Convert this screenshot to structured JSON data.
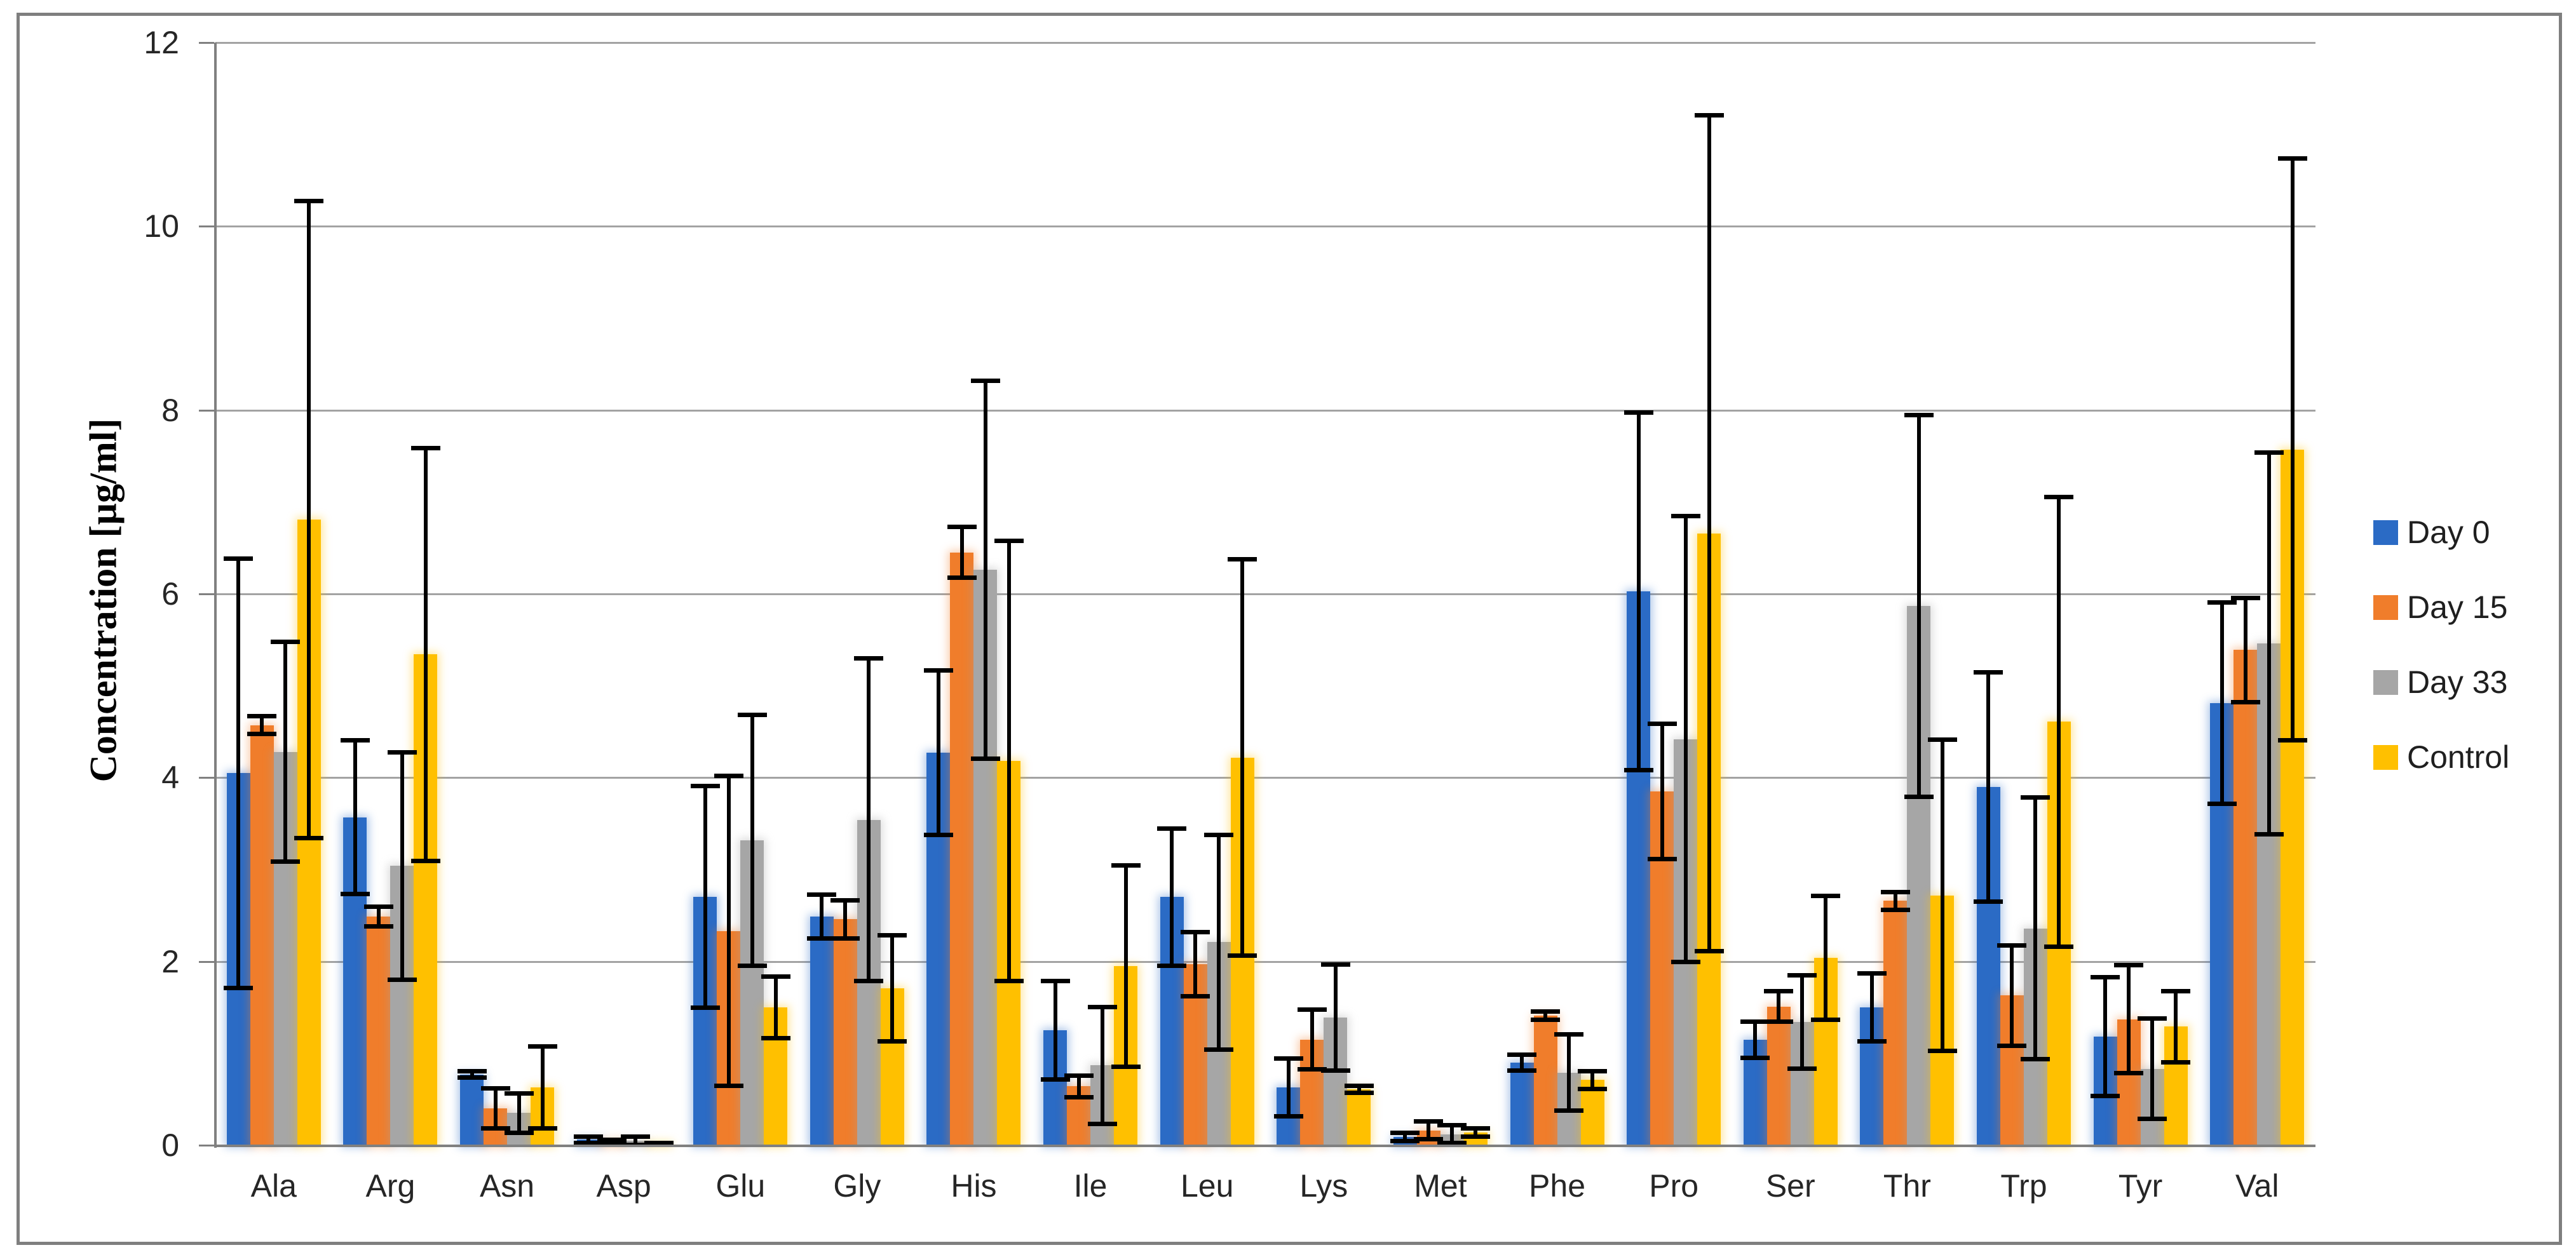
{
  "figure": {
    "background": "#ffffff",
    "border_color": "#7f7f7f"
  },
  "y_axis": {
    "title": "Concentration [µg/ml]",
    "min": 0,
    "max": 12,
    "tick_step": 2,
    "ticks": [
      0,
      2,
      4,
      6,
      8,
      10,
      12
    ],
    "tick_labels": [
      "0",
      "2",
      "4",
      "6",
      "8",
      "10",
      "12"
    ]
  },
  "x_axis": {
    "categories": [
      "Ala",
      "Arg",
      "Asn",
      "Asp",
      "Glu",
      "Gly",
      "His",
      "Ile",
      "Leu",
      "Lys",
      "Met",
      "Phe",
      "Pro",
      "Ser",
      "Thr",
      "Trp",
      "Tyr",
      "Val"
    ]
  },
  "legend": {
    "position": "right",
    "labels": [
      "Day 0",
      "Day 15",
      "Day 33",
      "Control"
    ]
  },
  "colors": {
    "day0": "#2b6bc5",
    "day15": "#f07d2b",
    "day33": "#a6a6a6",
    "control": "#ffc000",
    "gridline": "#a3a3a3",
    "axis": "#808080",
    "error_bar": "#000000"
  },
  "chart_data": {
    "type": "bar",
    "title": "",
    "xlabel": "",
    "ylabel": "Concentration [µg/ml]",
    "ylim": [
      0,
      12
    ],
    "grid": true,
    "legend_position": "right",
    "error_bars": true,
    "categories": [
      "Ala",
      "Arg",
      "Asn",
      "Asp",
      "Glu",
      "Gly",
      "His",
      "Ile",
      "Leu",
      "Lys",
      "Met",
      "Phe",
      "Pro",
      "Ser",
      "Thr",
      "Trp",
      "Tyr",
      "Val"
    ],
    "series": [
      {
        "name": "Day 0",
        "color": "#2b6bc5",
        "values": [
          4.05,
          3.57,
          0.77,
          0.06,
          2.7,
          2.49,
          4.27,
          1.25,
          2.7,
          0.63,
          0.09,
          0.9,
          6.03,
          1.15,
          1.5,
          3.9,
          1.18,
          4.81
        ],
        "errors": [
          2.34,
          0.84,
          0.04,
          0.04,
          1.21,
          0.24,
          0.9,
          0.54,
          0.75,
          0.32,
          0.05,
          0.09,
          1.95,
          0.2,
          0.37,
          1.25,
          0.65,
          1.1
        ]
      },
      {
        "name": "Day 15",
        "color": "#f07d2b",
        "values": [
          4.57,
          2.49,
          0.4,
          0.04,
          2.33,
          2.46,
          6.45,
          0.64,
          1.97,
          1.15,
          0.16,
          1.41,
          3.85,
          1.51,
          2.66,
          1.63,
          1.37,
          5.39
        ],
        "errors": [
          0.1,
          0.11,
          0.22,
          0.02,
          1.69,
          0.21,
          0.28,
          0.12,
          0.35,
          0.33,
          0.1,
          0.05,
          0.74,
          0.17,
          0.1,
          0.55,
          0.59,
          0.57
        ]
      },
      {
        "name": "Day 33",
        "color": "#a6a6a6",
        "values": [
          4.28,
          3.04,
          0.35,
          0.05,
          3.32,
          3.54,
          6.26,
          0.87,
          2.21,
          1.39,
          0.12,
          0.79,
          4.42,
          1.34,
          5.87,
          2.36,
          0.83,
          5.46
        ],
        "errors": [
          1.2,
          1.24,
          0.22,
          0.05,
          1.37,
          1.76,
          2.06,
          0.64,
          1.17,
          0.58,
          0.1,
          0.42,
          2.43,
          0.51,
          2.08,
          1.43,
          0.55,
          2.08
        ]
      },
      {
        "name": "Control",
        "color": "#ffc000",
        "values": [
          6.81,
          5.34,
          0.63,
          0.02,
          1.5,
          1.71,
          4.18,
          1.95,
          4.22,
          0.61,
          0.14,
          0.71,
          6.66,
          2.04,
          2.72,
          4.61,
          1.29,
          7.57
        ],
        "errors": [
          3.47,
          2.25,
          0.45,
          0.01,
          0.34,
          0.58,
          2.4,
          1.1,
          2.16,
          0.04,
          0.05,
          0.1,
          4.55,
          0.68,
          1.7,
          2.45,
          0.39,
          3.17
        ]
      }
    ]
  }
}
